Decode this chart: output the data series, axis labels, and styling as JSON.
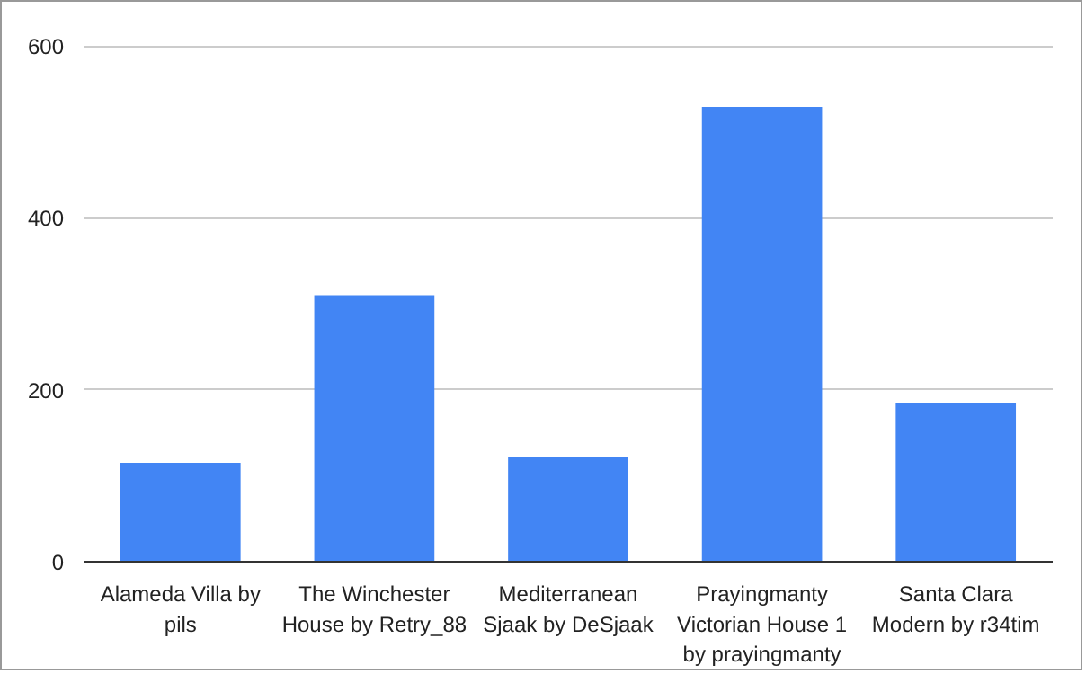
{
  "chart_data": {
    "type": "bar",
    "categories": [
      "Alameda Villa by pils",
      "The Winchester House by Retry_88",
      "Mediterranean Sjaak by DeSjaak",
      "Prayingmanty Victorian House 1 by prayingmanty",
      "Santa Clara Modern by r34tim"
    ],
    "values": [
      115,
      310,
      122,
      529,
      185
    ],
    "color": "#4285f4",
    "ylim": [
      0,
      600
    ],
    "yticks": [
      0,
      200,
      400,
      600
    ],
    "grid": "y"
  }
}
